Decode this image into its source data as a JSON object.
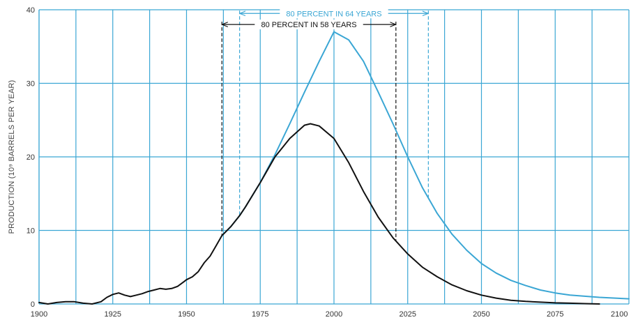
{
  "chart_data": {
    "type": "line",
    "ylabel": "PRODUCTION (10⁹ BARRELS PER YEAR)",
    "xlabel": "",
    "xlim": [
      1900,
      2100
    ],
    "ylim": [
      0,
      40
    ],
    "x_ticks": [
      "1900",
      "1925",
      "1950",
      "1975",
      "2000",
      "2025",
      "2050",
      "2075",
      "2100"
    ],
    "y_ticks": [
      "0",
      "10",
      "20",
      "30",
      "40"
    ],
    "grid": true,
    "colors": {
      "blue": "#3aa6d4",
      "black": "#111111",
      "grid": "#3aa6d4"
    },
    "series": [
      {
        "color": "#3aa6d4",
        "x": [
          1962,
          1965,
          1968,
          1970,
          1975,
          1980,
          1985,
          1990,
          1995,
          2000,
          2005,
          2010,
          2015,
          2020,
          2025,
          2030,
          2035,
          2040,
          2045,
          2050,
          2055,
          2060,
          2065,
          2070,
          2075,
          2080,
          2090,
          2100
        ],
        "y": [
          9.3,
          10.5,
          12.0,
          13.2,
          16.5,
          20.3,
          24.5,
          28.8,
          33.0,
          37.0,
          35.9,
          33.0,
          28.8,
          24.5,
          20.0,
          15.8,
          12.3,
          9.5,
          7.3,
          5.5,
          4.2,
          3.2,
          2.5,
          1.9,
          1.5,
          1.2,
          0.9,
          0.7
        ]
      },
      {
        "color": "#111111",
        "x": [
          1900,
          1903,
          1906,
          1909,
          1912,
          1915,
          1918,
          1921,
          1923,
          1925,
          1927,
          1929,
          1931,
          1933,
          1935,
          1937,
          1939,
          1941,
          1943,
          1945,
          1947,
          1949,
          1950,
          1952,
          1954,
          1956,
          1958,
          1960,
          1962,
          1965,
          1968,
          1970,
          1975,
          1980,
          1985,
          1990,
          1992,
          1995,
          2000,
          2005,
          2010,
          2015,
          2020,
          2025,
          2030,
          2035,
          2040,
          2045,
          2050,
          2055,
          2060,
          2065,
          2070,
          2075,
          2080,
          2085,
          2090
        ],
        "y": [
          0.2,
          0.0,
          0.2,
          0.3,
          0.3,
          0.1,
          0.0,
          0.3,
          0.9,
          1.3,
          1.5,
          1.2,
          1.0,
          1.2,
          1.4,
          1.7,
          1.9,
          2.1,
          2.0,
          2.1,
          2.4,
          3.0,
          3.3,
          3.7,
          4.4,
          5.6,
          6.5,
          7.9,
          9.3,
          10.5,
          12.0,
          13.2,
          16.5,
          20.0,
          22.5,
          24.3,
          24.5,
          24.2,
          22.5,
          19.2,
          15.3,
          11.8,
          9.0,
          6.8,
          5.0,
          3.7,
          2.6,
          1.8,
          1.2,
          0.8,
          0.5,
          0.35,
          0.25,
          0.15,
          0.1,
          0.05,
          0.0
        ]
      }
    ],
    "annotations": [
      {
        "text": "80 PERCENT IN 64 YEARS",
        "x_start": 1968,
        "x_end": 2032,
        "color": "#3aa6d4",
        "y_top": 39.5,
        "row": 1
      },
      {
        "text": "80 PERCENT IN 58 YEARS",
        "x_start": 1962,
        "x_end": 2021,
        "color": "#111111",
        "y_top": 38.0,
        "row": 2
      }
    ]
  }
}
